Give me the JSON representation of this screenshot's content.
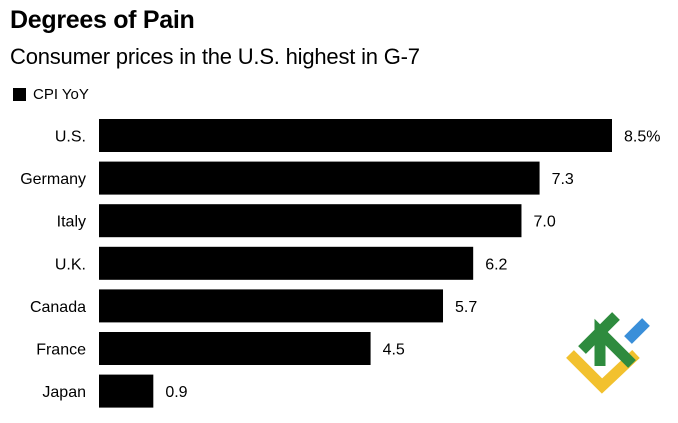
{
  "title": "Degrees of Pain",
  "subtitle": "Consumer prices in the U.S. highest in G-7",
  "legend": {
    "label": "CPI YoY"
  },
  "logo": {
    "icon": "brand-logo-icon",
    "colors": [
      "#2e8b3e",
      "#3a8fd9",
      "#f2c12e"
    ]
  },
  "chart_data": {
    "type": "bar",
    "orientation": "horizontal",
    "title": "Degrees of Pain",
    "subtitle": "Consumer prices in the U.S. highest in G-7",
    "categories": [
      "U.S.",
      "Germany",
      "Italy",
      "U.K.",
      "Canada",
      "France",
      "Japan"
    ],
    "series": [
      {
        "name": "CPI YoY",
        "values": [
          8.5,
          7.3,
          7.0,
          6.2,
          5.7,
          4.5,
          0.9
        ],
        "color": "#000000"
      }
    ],
    "data_labels": [
      "8.5%",
      "7.3",
      "7.0",
      "6.2",
      "5.7",
      "4.5",
      "0.9"
    ],
    "xlim": [
      0,
      8.5
    ],
    "grid": false,
    "legend_position": "top-left"
  }
}
